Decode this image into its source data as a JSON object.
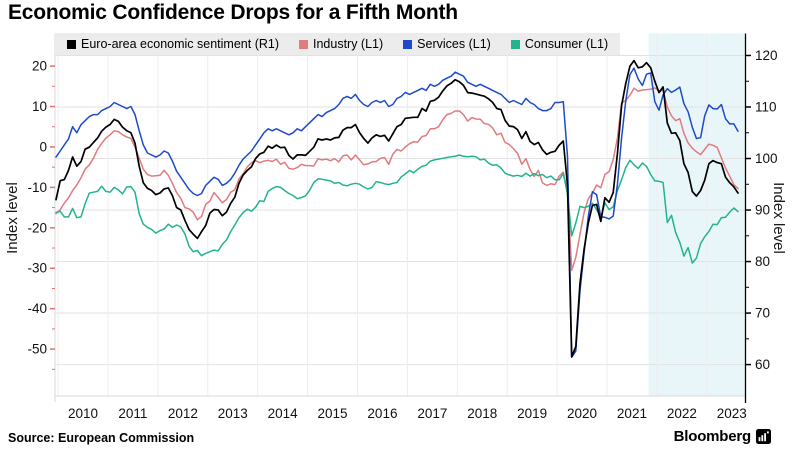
{
  "window": {
    "title": "Economic Confidence Drops for a Fifth Month"
  },
  "footer": {
    "source_label": "Source:  European Commission",
    "brand": "Bloomberg"
  },
  "left_axis": {
    "title": "Index level",
    "major_ticks": [
      20,
      10,
      0,
      -10,
      -20,
      -30,
      -40,
      -50
    ],
    "minor_ticks": [
      15,
      5,
      -5,
      -15,
      -25,
      -35,
      -45,
      -55
    ],
    "top_value": 22.5,
    "bottom_value": -61.6,
    "tick_color": "#e0736f"
  },
  "right_axis": {
    "title": "Index level",
    "major_ticks": [
      120,
      110,
      100,
      90,
      80,
      70,
      60
    ],
    "minor_ticks": [
      115,
      105,
      95,
      85,
      75,
      65
    ],
    "top_value": 119.9,
    "bottom_value": 53.9,
    "tick_color": "#000000"
  },
  "x_axis": {
    "years": [
      2010,
      2011,
      2012,
      2013,
      2014,
      2015,
      2016,
      2017,
      2018,
      2019,
      2020,
      2021,
      2022,
      2023
    ],
    "domain_start": 2009.9583,
    "domain_end": 2023.625
  },
  "chart_data": {
    "type": "line",
    "title": "Economic Confidence Drops for a Fifth Month",
    "frequency": "monthly",
    "x_start": 2009.9583,
    "x_end": 2023.625,
    "grid": "on",
    "legend_position": "top",
    "highlight_region": {
      "from": 2021.8333,
      "to": 2023.8,
      "color": "#e9f6f9"
    },
    "background": "#ffffff",
    "series": [
      {
        "name": "euro-area-economic-sentiment",
        "label": "Euro-area economic sentiment (R1)",
        "axis": "right",
        "color": "#000000",
        "values": [
          92.0,
          95.7,
          95.9,
          97.7,
          100.3,
          98.5,
          99.4,
          101.8,
          102.2,
          103.1,
          104.0,
          105.3,
          106.1,
          106.6,
          107.6,
          107.2,
          106.1,
          105.4,
          105.0,
          103.0,
          98.5,
          95.3,
          94.2,
          93.8,
          93.0,
          93.3,
          94.1,
          94.3,
          92.8,
          90.5,
          90.0,
          88.0,
          86.2,
          85.3,
          84.5,
          85.8,
          87.0,
          89.4,
          90.1,
          90.0,
          88.9,
          89.6,
          91.3,
          92.5,
          95.2,
          96.8,
          97.7,
          98.4,
          100.0,
          100.9,
          101.2,
          102.4,
          102.0,
          102.6,
          102.1,
          102.2,
          100.6,
          99.9,
          100.7,
          100.7,
          100.6,
          101.4,
          102.2,
          103.8,
          103.6,
          103.8,
          103.6,
          104.0,
          104.1,
          105.5,
          106.0,
          106.0,
          106.6,
          105.0,
          103.9,
          103.0,
          104.0,
          104.6,
          104.3,
          104.5,
          103.4,
          104.8,
          106.2,
          106.6,
          107.8,
          107.9,
          108.0,
          108.0,
          109.7,
          109.2,
          111.1,
          111.3,
          111.9,
          113.1,
          114.1,
          114.6,
          115.3,
          114.9,
          114.2,
          112.8,
          112.7,
          112.5,
          112.3,
          112.1,
          111.6,
          110.9,
          109.7,
          109.5,
          107.4,
          106.3,
          106.2,
          105.6,
          103.9,
          105.2,
          103.3,
          102.7,
          103.1,
          101.7,
          100.8,
          101.2,
          101.4,
          102.6,
          103.4,
          94.8,
          61.5,
          63.5,
          75.8,
          82.4,
          87.5,
          90.9,
          91.1,
          87.8,
          92.4,
          91.5,
          93.4,
          100.9,
          110.3,
          114.5,
          117.9,
          119.0,
          117.6,
          117.8,
          118.6,
          117.6,
          115.0,
          112.8,
          113.9,
          106.9,
          104.9,
          105.0,
          103.5,
          99.0,
          97.3,
          93.6,
          92.7,
          93.8,
          95.8,
          99.0,
          99.6,
          99.2,
          99.0,
          96.4,
          95.3,
          94.5,
          93.3
        ]
      },
      {
        "name": "industry",
        "label": "Industry (L1)",
        "axis": "left",
        "color": "#e07b80",
        "values": [
          -16.5,
          -15.5,
          -13.9,
          -12.6,
          -10.8,
          -9.4,
          -7.6,
          -5.5,
          -4.4,
          -2.8,
          -0.6,
          0.9,
          2.2,
          3.0,
          4.0,
          3.8,
          3.0,
          2.5,
          2.1,
          0.0,
          -2.8,
          -5.5,
          -6.8,
          -7.2,
          -7.1,
          -7.0,
          -5.8,
          -7.0,
          -9.0,
          -11.3,
          -12.7,
          -15.0,
          -15.3,
          -16.1,
          -18.0,
          -17.2,
          -14.2,
          -13.4,
          -11.3,
          -12.5,
          -13.8,
          -13.0,
          -11.2,
          -10.6,
          -7.9,
          -6.7,
          -4.9,
          -3.9,
          -3.4,
          -3.9,
          -3.5,
          -3.3,
          -3.6,
          -3.0,
          -4.3,
          -3.8,
          -5.3,
          -5.5,
          -5.1,
          -4.3,
          -4.6,
          -4.6,
          -4.7,
          -2.9,
          -3.2,
          -3.0,
          -3.4,
          -2.9,
          -3.7,
          -2.2,
          -2.0,
          -3.2,
          -2.0,
          -3.2,
          -4.4,
          -4.2,
          -3.7,
          -3.6,
          -2.8,
          -2.6,
          -4.3,
          -1.8,
          -0.6,
          -1.0,
          0.0,
          0.8,
          1.3,
          1.2,
          2.6,
          2.8,
          4.5,
          4.5,
          5.0,
          6.7,
          8.0,
          8.3,
          8.9,
          8.9,
          8.0,
          6.4,
          7.3,
          6.9,
          6.9,
          5.8,
          5.6,
          4.7,
          3.0,
          3.4,
          1.1,
          0.6,
          -0.4,
          -1.6,
          -4.3,
          -2.9,
          -5.6,
          -7.3,
          -5.8,
          -8.9,
          -9.5,
          -9.1,
          -9.3,
          -7.2,
          -6.2,
          -11.2,
          -30.5,
          -27.3,
          -21.6,
          -16.2,
          -12.8,
          -11.4,
          -9.4,
          -10.1,
          -6.8,
          -6.1,
          -3.1,
          2.1,
          10.9,
          11.5,
          12.8,
          14.5,
          13.8,
          14.1,
          14.2,
          14.3,
          14.6,
          13.9,
          14.0,
          9.9,
          7.7,
          6.5,
          7.0,
          3.4,
          1.0,
          -0.3,
          -1.2,
          -1.9,
          -0.6,
          0.7,
          0.4,
          -0.1,
          -2.7,
          -5.2,
          -7.2,
          -9.3,
          -10.3
        ]
      },
      {
        "name": "services",
        "label": "Services (L1)",
        "axis": "left",
        "color": "#1d49cb",
        "values": [
          -2.5,
          -1.0,
          0.5,
          2.0,
          5.0,
          3.5,
          5.5,
          6.5,
          7.5,
          8.0,
          8.0,
          9.0,
          9.5,
          10.0,
          11.0,
          10.5,
          10.0,
          9.5,
          10.0,
          8.0,
          4.0,
          0.5,
          -1.5,
          -2.0,
          -2.5,
          -2.0,
          -1.0,
          -1.5,
          -3.5,
          -6.0,
          -7.5,
          -9.0,
          -10.5,
          -11.5,
          -12.0,
          -11.5,
          -9.5,
          -8.5,
          -7.5,
          -8.0,
          -9.5,
          -9.0,
          -8.0,
          -6.5,
          -4.5,
          -3.0,
          -2.0,
          -1.0,
          0.5,
          2.0,
          3.5,
          4.5,
          4.0,
          4.5,
          4.0,
          3.5,
          3.0,
          3.5,
          4.5,
          4.0,
          5.0,
          6.0,
          7.0,
          8.0,
          7.5,
          8.5,
          9.0,
          9.5,
          10.5,
          12.0,
          12.5,
          12.0,
          13.0,
          11.5,
          10.5,
          10.0,
          11.0,
          11.5,
          11.0,
          11.5,
          10.0,
          10.5,
          12.0,
          12.5,
          13.5,
          13.0,
          13.5,
          14.0,
          14.5,
          14.0,
          15.5,
          15.0,
          15.5,
          16.5,
          17.0,
          17.5,
          18.5,
          18.0,
          17.5,
          16.0,
          15.5,
          15.0,
          15.5,
          15.0,
          14.5,
          14.0,
          13.5,
          13.0,
          12.0,
          11.0,
          11.5,
          11.0,
          10.5,
          12.0,
          11.0,
          10.5,
          9.5,
          9.0,
          9.0,
          9.5,
          11.0,
          11.0,
          11.2,
          -2.3,
          -52.0,
          -50.5,
          -35.5,
          -26.1,
          -17.2,
          -11.1,
          -11.8,
          -17.3,
          -17.4,
          -17.8,
          -17.1,
          -9.3,
          2.3,
          11.3,
          17.9,
          19.5,
          16.8,
          15.2,
          18.0,
          18.3,
          11.2,
          9.1,
          12.9,
          14.4,
          13.5,
          14.1,
          14.8,
          10.7,
          8.7,
          4.9,
          2.1,
          2.3,
          7.7,
          10.4,
          9.5,
          9.4,
          10.5,
          7.0,
          5.7,
          5.7,
          3.9
        ]
      },
      {
        "name": "consumer",
        "label": "Consumer (L1)",
        "axis": "left",
        "color": "#23b390",
        "values": [
          -16.2,
          -15.9,
          -17.3,
          -17.3,
          -15.2,
          -17.5,
          -17.3,
          -14.0,
          -11.4,
          -11.2,
          -11.0,
          -9.7,
          -11.0,
          -11.2,
          -10.0,
          -10.6,
          -11.6,
          -9.9,
          -9.8,
          -11.2,
          -16.5,
          -19.1,
          -19.9,
          -20.4,
          -21.3,
          -20.7,
          -20.3,
          -19.1,
          -19.9,
          -19.3,
          -19.8,
          -21.5,
          -24.6,
          -25.9,
          -25.6,
          -26.9,
          -26.3,
          -25.9,
          -25.5,
          -25.7,
          -24.1,
          -23.0,
          -20.9,
          -19.3,
          -17.5,
          -16.2,
          -15.4,
          -15.9,
          -14.9,
          -13.3,
          -13.5,
          -11.0,
          -10.3,
          -9.8,
          -10.0,
          -10.8,
          -11.5,
          -12.0,
          -12.8,
          -12.5,
          -12.1,
          -10.7,
          -8.8,
          -7.9,
          -8.0,
          -8.2,
          -8.4,
          -9.0,
          -8.8,
          -9.4,
          -9.6,
          -9.2,
          -9.0,
          -9.2,
          -9.9,
          -10.4,
          -10.0,
          -8.6,
          -8.8,
          -9.1,
          -9.3,
          -9.0,
          -8.8,
          -7.4,
          -6.7,
          -5.8,
          -6.4,
          -5.5,
          -4.8,
          -4.5,
          -3.5,
          -3.2,
          -3.0,
          -2.8,
          -2.6,
          -2.4,
          -2.3,
          -2.0,
          -2.3,
          -2.4,
          -2.3,
          -2.4,
          -3.2,
          -3.0,
          -4.0,
          -4.5,
          -4.4,
          -5.2,
          -6.5,
          -6.9,
          -7.2,
          -7.0,
          -7.3,
          -6.5,
          -7.2,
          -6.6,
          -7.1,
          -6.8,
          -7.6,
          -7.2,
          -8.1,
          -8.1,
          -6.6,
          -11.6,
          -22.0,
          -18.8,
          -14.7,
          -15.0,
          -14.7,
          -13.9,
          -15.5,
          -17.6,
          -13.8,
          -15.5,
          -14.8,
          -10.8,
          -8.1,
          -5.1,
          -3.3,
          -4.4,
          -5.3,
          -4.0,
          -4.8,
          -6.8,
          -8.4,
          -8.5,
          -8.8,
          -18.7,
          -16.9,
          -21.1,
          -23.6,
          -27.0,
          -24.9,
          -28.7,
          -27.5,
          -23.9,
          -22.2,
          -20.9,
          -19.1,
          -19.2,
          -17.5,
          -17.4,
          -16.1,
          -15.1,
          -16.0
        ]
      }
    ]
  }
}
